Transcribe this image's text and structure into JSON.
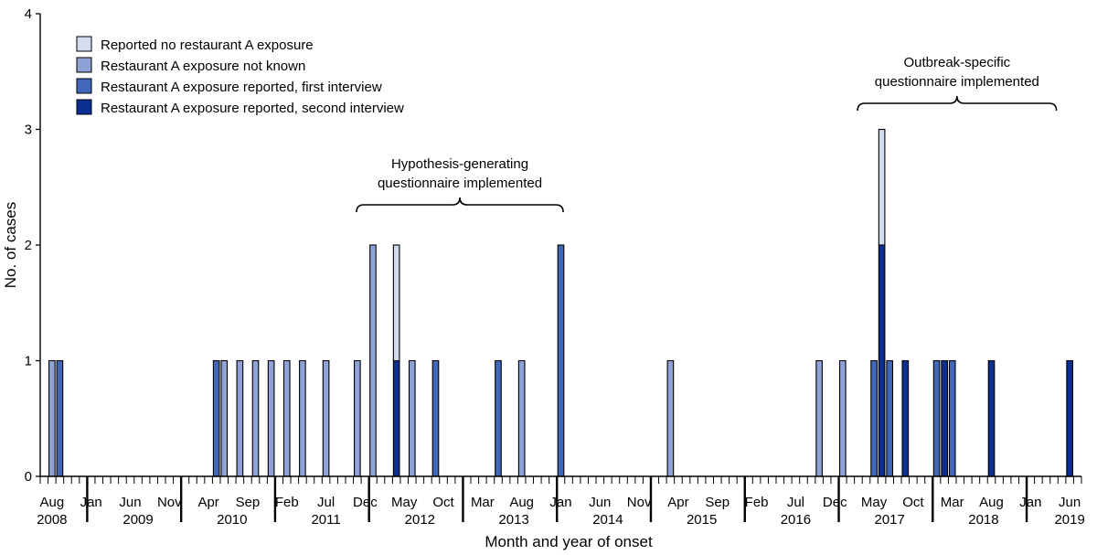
{
  "chart_data": {
    "type": "bar",
    "stacked": true,
    "xlabel": "Month and year of onset",
    "ylabel": "No. of cases",
    "ylim": [
      0,
      4
    ],
    "yticks": [
      "0",
      "1",
      "2",
      "3",
      "4"
    ],
    "x_range": [
      "2008-07",
      "2019-07"
    ],
    "month_ticks": [
      {
        "month": "2008-08",
        "label": "Aug"
      },
      {
        "month": "2009-01",
        "label": "Jan"
      },
      {
        "month": "2009-06",
        "label": "Jun"
      },
      {
        "month": "2009-11",
        "label": "Nov"
      },
      {
        "month": "2010-04",
        "label": "Apr"
      },
      {
        "month": "2010-09",
        "label": "Sep"
      },
      {
        "month": "2011-02",
        "label": "Feb"
      },
      {
        "month": "2011-07",
        "label": "Jul"
      },
      {
        "month": "2011-12",
        "label": "Dec"
      },
      {
        "month": "2012-05",
        "label": "May"
      },
      {
        "month": "2012-10",
        "label": "Oct"
      },
      {
        "month": "2013-03",
        "label": "Mar"
      },
      {
        "month": "2013-08",
        "label": "Aug"
      },
      {
        "month": "2014-01",
        "label": "Jan"
      },
      {
        "month": "2014-06",
        "label": "Jun"
      },
      {
        "month": "2014-11",
        "label": "Nov"
      },
      {
        "month": "2015-04",
        "label": "Apr"
      },
      {
        "month": "2015-09",
        "label": "Sep"
      },
      {
        "month": "2016-02",
        "label": "Feb"
      },
      {
        "month": "2016-07",
        "label": "Jul"
      },
      {
        "month": "2016-12",
        "label": "Dec"
      },
      {
        "month": "2017-05",
        "label": "May"
      },
      {
        "month": "2017-10",
        "label": "Oct"
      },
      {
        "month": "2018-03",
        "label": "Mar"
      },
      {
        "month": "2018-08",
        "label": "Aug"
      },
      {
        "month": "2019-01",
        "label": "Jan"
      },
      {
        "month": "2019-06",
        "label": "Jun"
      }
    ],
    "year_labels": [
      {
        "month": "2008-08",
        "label": "2008"
      },
      {
        "month": "2009-07",
        "label": "2009"
      },
      {
        "month": "2010-07",
        "label": "2010"
      },
      {
        "month": "2011-07",
        "label": "2011"
      },
      {
        "month": "2012-07",
        "label": "2012"
      },
      {
        "month": "2013-07",
        "label": "2013"
      },
      {
        "month": "2014-07",
        "label": "2014"
      },
      {
        "month": "2015-07",
        "label": "2015"
      },
      {
        "month": "2016-07",
        "label": "2016"
      },
      {
        "month": "2017-07",
        "label": "2017"
      },
      {
        "month": "2018-07",
        "label": "2018"
      },
      {
        "month": "2019-06",
        "label": "2019"
      }
    ],
    "year_boundaries": [
      "2009-01",
      "2010-01",
      "2011-01",
      "2012-01",
      "2013-01",
      "2014-01",
      "2015-01",
      "2016-01",
      "2017-01",
      "2018-01",
      "2019-01"
    ],
    "series": [
      {
        "name": "Reported no restaurant A exposure",
        "color": "#d3dbef"
      },
      {
        "name": "Restaurant A exposure not known",
        "color": "#8ea2d6"
      },
      {
        "name": "Restaurant A exposure reported, first interview",
        "color": "#4167bb"
      },
      {
        "name": "Restaurant A exposure reported, second interview",
        "color": "#0c2f93"
      }
    ],
    "data": [
      {
        "month": "2008-08",
        "values": [
          0,
          1,
          0,
          0
        ]
      },
      {
        "month": "2008-09",
        "values": [
          0,
          0,
          1,
          0
        ]
      },
      {
        "month": "2010-05",
        "values": [
          0,
          0,
          1,
          0
        ]
      },
      {
        "month": "2010-06",
        "values": [
          0,
          1,
          0,
          0
        ]
      },
      {
        "month": "2010-08",
        "values": [
          0,
          1,
          0,
          0
        ]
      },
      {
        "month": "2010-10",
        "values": [
          0,
          1,
          0,
          0
        ]
      },
      {
        "month": "2010-12",
        "values": [
          0,
          1,
          0,
          0
        ]
      },
      {
        "month": "2011-02",
        "values": [
          0,
          1,
          0,
          0
        ]
      },
      {
        "month": "2011-04",
        "values": [
          0,
          1,
          0,
          0
        ]
      },
      {
        "month": "2011-07",
        "values": [
          0,
          1,
          0,
          0
        ]
      },
      {
        "month": "2011-11",
        "values": [
          0,
          1,
          0,
          0
        ]
      },
      {
        "month": "2012-01",
        "values": [
          0,
          2,
          0,
          0
        ]
      },
      {
        "month": "2012-04",
        "values": [
          1,
          0,
          0,
          1
        ]
      },
      {
        "month": "2012-06",
        "values": [
          0,
          1,
          0,
          0
        ]
      },
      {
        "month": "2012-09",
        "values": [
          0,
          0,
          1,
          0
        ]
      },
      {
        "month": "2013-05",
        "values": [
          0,
          0,
          1,
          0
        ]
      },
      {
        "month": "2013-08",
        "values": [
          0,
          1,
          0,
          0
        ]
      },
      {
        "month": "2014-01",
        "values": [
          0,
          0,
          2,
          0
        ]
      },
      {
        "month": "2015-03",
        "values": [
          0,
          1,
          0,
          0
        ]
      },
      {
        "month": "2016-10",
        "values": [
          0,
          1,
          0,
          0
        ]
      },
      {
        "month": "2017-01",
        "values": [
          0,
          1,
          0,
          0
        ]
      },
      {
        "month": "2017-05",
        "values": [
          0,
          0,
          1,
          0
        ]
      },
      {
        "month": "2017-06",
        "values": [
          1,
          0,
          0,
          2
        ]
      },
      {
        "month": "2017-07",
        "values": [
          0,
          0,
          1,
          0
        ]
      },
      {
        "month": "2017-09",
        "values": [
          0,
          0,
          0,
          1
        ]
      },
      {
        "month": "2018-01",
        "values": [
          0,
          0,
          1,
          0
        ]
      },
      {
        "month": "2018-02",
        "values": [
          0,
          0,
          0,
          1
        ]
      },
      {
        "month": "2018-03",
        "values": [
          0,
          0,
          1,
          0
        ]
      },
      {
        "month": "2018-08",
        "values": [
          0,
          0,
          0,
          1
        ]
      },
      {
        "month": "2019-06",
        "values": [
          0,
          0,
          0,
          1
        ]
      }
    ],
    "legend_position": "top-left",
    "annotations": [
      {
        "lines": [
          "Hypothesis-generating",
          "questionnaire implemented"
        ],
        "start": "2011-12",
        "end": "2014-01"
      },
      {
        "lines": [
          "Outbreak-specific",
          "questionnaire implemented"
        ],
        "start": "2017-04",
        "end": "2019-04"
      }
    ]
  }
}
